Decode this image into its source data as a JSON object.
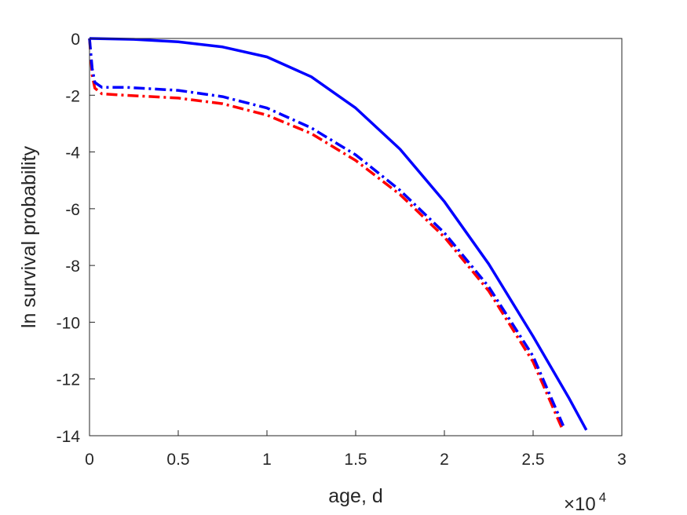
{
  "chart_data": {
    "type": "line",
    "xlabel": "age, d",
    "ylabel": "ln survival probability",
    "x_exponent_label": {
      "base": "×10",
      "power": "4"
    },
    "xlim": [
      0,
      30000
    ],
    "ylim": [
      -14,
      0
    ],
    "xticks": [
      0,
      5000,
      10000,
      15000,
      20000,
      25000,
      30000
    ],
    "xtick_labels": [
      "0",
      "0.5",
      "1",
      "1.5",
      "2",
      "2.5",
      "3"
    ],
    "yticks": [
      0,
      -2,
      -4,
      -6,
      -8,
      -10,
      -12,
      -14
    ],
    "ytick_labels": [
      "0",
      "-2",
      "-4",
      "-6",
      "-8",
      "-10",
      "-12",
      "-14"
    ],
    "grid": false,
    "box": true,
    "series": [
      {
        "color": "#0000ff",
        "style": "solid",
        "x": [
          0,
          2500,
          5000,
          7500,
          10000,
          12500,
          15000,
          17500,
          20000,
          22500,
          25000,
          27000,
          28000
        ],
        "y": [
          0,
          -0.03,
          -0.12,
          -0.3,
          -0.65,
          -1.35,
          -2.45,
          -3.9,
          -5.75,
          -7.95,
          -10.5,
          -12.65,
          -13.8
        ]
      },
      {
        "color": "#ff0000",
        "style": "dashdot",
        "x": [
          0,
          150,
          300,
          700,
          2000,
          5000,
          7500,
          10000,
          12500,
          15000,
          17500,
          20000,
          22500,
          25000,
          26600
        ],
        "y": [
          0,
          -1.3,
          -1.75,
          -1.95,
          -2.0,
          -2.1,
          -2.3,
          -2.7,
          -3.35,
          -4.3,
          -5.5,
          -7.0,
          -8.9,
          -11.4,
          -13.7
        ]
      },
      {
        "color": "#0000ff",
        "style": "dashdot",
        "x": [
          0,
          150,
          300,
          700,
          2000,
          5000,
          7500,
          10000,
          12500,
          15000,
          17500,
          20000,
          22500,
          25000,
          26700
        ],
        "y": [
          0,
          -1.05,
          -1.55,
          -1.72,
          -1.72,
          -1.83,
          -2.05,
          -2.45,
          -3.15,
          -4.1,
          -5.35,
          -6.85,
          -8.75,
          -11.2,
          -13.65
        ]
      }
    ]
  }
}
